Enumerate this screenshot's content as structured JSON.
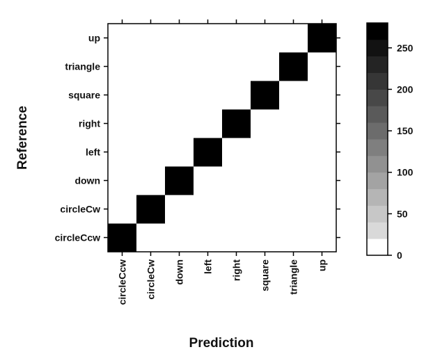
{
  "chart_data": {
    "type": "heatmap",
    "xlabel": "Prediction",
    "ylabel": "Reference",
    "x_categories": [
      "circleCcw",
      "circleCw",
      "down",
      "left",
      "right",
      "square",
      "triangle",
      "up"
    ],
    "y_categories": [
      "circleCcw",
      "circleCw",
      "down",
      "left",
      "right",
      "square",
      "triangle",
      "up"
    ],
    "value_range": [
      0,
      280
    ],
    "colorbar_ticks": [
      "0",
      "50",
      "100",
      "150",
      "200",
      "250"
    ],
    "colorbar_tick_values": [
      0,
      50,
      100,
      150,
      200,
      250
    ],
    "colors": {
      "low": "#ffffff",
      "high": "#000000"
    },
    "matrix": [
      [
        280,
        12,
        0,
        12,
        12,
        0,
        0,
        0
      ],
      [
        12,
        280,
        12,
        0,
        12,
        0,
        0,
        12
      ],
      [
        0,
        0,
        280,
        12,
        12,
        0,
        0,
        12
      ],
      [
        0,
        0,
        0,
        280,
        12,
        0,
        0,
        0
      ],
      [
        0,
        12,
        0,
        12,
        280,
        0,
        0,
        0
      ],
      [
        12,
        12,
        0,
        0,
        0,
        280,
        12,
        0
      ],
      [
        12,
        12,
        0,
        0,
        12,
        12,
        280,
        0
      ],
      [
        12,
        0,
        12,
        12,
        0,
        0,
        12,
        280
      ]
    ]
  }
}
